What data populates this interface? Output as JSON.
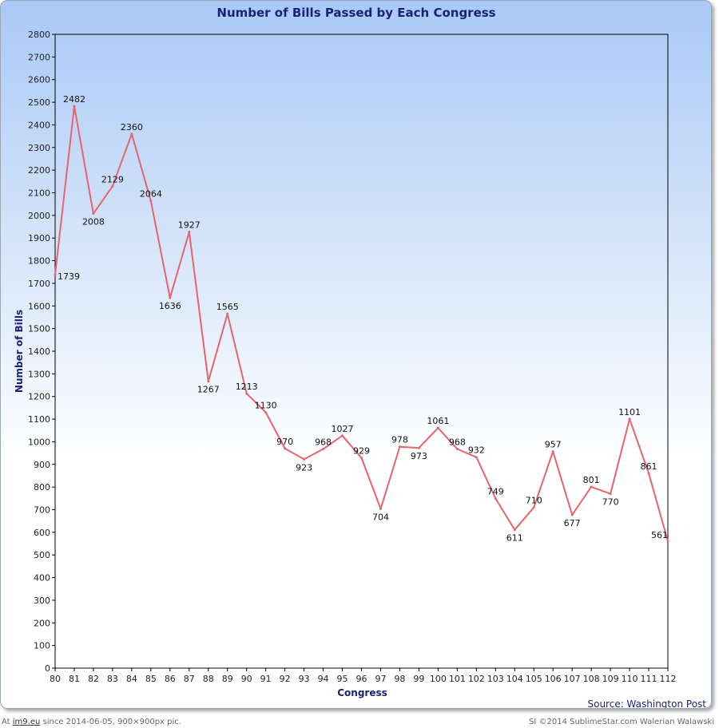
{
  "chart_data": {
    "type": "line",
    "title": "Number of Bills Passed by Each Congress",
    "xlabel": "Congress",
    "ylabel": "Number of Bills",
    "x": [
      "80",
      "81",
      "82",
      "83",
      "84",
      "85",
      "86",
      "87",
      "88",
      "89",
      "90",
      "91",
      "92",
      "93",
      "94",
      "95",
      "96",
      "97",
      "98",
      "99",
      "100",
      "101",
      "102",
      "103",
      "104",
      "105",
      "106",
      "107",
      "108",
      "109",
      "110",
      "111",
      "112"
    ],
    "series": [
      {
        "name": "",
        "color": "#e8646c",
        "values": [
          1739,
          2482,
          2008,
          2129,
          2360,
          2064,
          1636,
          1927,
          1267,
          1565,
          1213,
          1130,
          970,
          923,
          968,
          1027,
          929,
          704,
          978,
          973,
          1061,
          968,
          932,
          749,
          611,
          710,
          957,
          677,
          801,
          770,
          1101,
          861,
          561
        ],
        "labels": [
          "1739",
          "2482",
          "2008",
          "2129",
          "2360",
          "2064",
          "1636",
          "1927",
          "1267",
          "1565",
          "1213",
          "1130",
          "970",
          "923",
          "968",
          "1027",
          "929",
          "704",
          "978",
          "973",
          "1061",
          "968",
          "932",
          "749",
          "611",
          "710",
          "957",
          "677",
          "801",
          "770",
          "1101",
          "861",
          "561"
        ]
      }
    ],
    "ylim": [
      0,
      2800
    ],
    "yticks": [
      0,
      100,
      200,
      300,
      400,
      500,
      600,
      700,
      800,
      900,
      1000,
      1100,
      1200,
      1300,
      1400,
      1500,
      1600,
      1700,
      1800,
      1900,
      2000,
      2100,
      2200,
      2300,
      2400,
      2500,
      2600,
      2700,
      2800
    ],
    "grid": false,
    "legend": "none",
    "annotations": [
      "Source: Washington Post"
    ],
    "background_gradient": [
      "#a9c9f7",
      "#ffffff"
    ]
  },
  "source": "Source: Washington Post",
  "footer": {
    "left_prefix": "At ",
    "left_link": "im9.eu",
    "left_suffix": " since 2014-06-05, 900×900px pic.",
    "right": "SI ©2014 SublimeStar.com Walerian Walawski"
  }
}
